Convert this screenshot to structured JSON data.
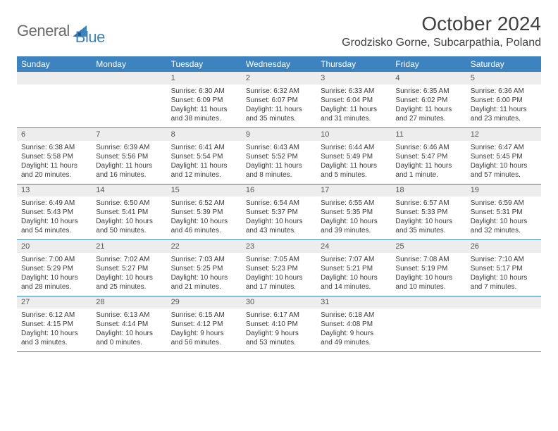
{
  "logo": {
    "general": "General",
    "blue": "Blue"
  },
  "title": "October 2024",
  "location": "Grodzisko Gorne, Subcarpathia, Poland",
  "colors": {
    "brand_blue": "#3d83bf",
    "header_gray": "#ededed",
    "text": "#3a3a3a",
    "logo_gray": "#6a6a6a"
  },
  "weekdays": [
    "Sunday",
    "Monday",
    "Tuesday",
    "Wednesday",
    "Thursday",
    "Friday",
    "Saturday"
  ],
  "weeks": [
    [
      null,
      null,
      {
        "n": "1",
        "sr": "Sunrise: 6:30 AM",
        "ss": "Sunset: 6:09 PM",
        "d1": "Daylight: 11 hours",
        "d2": "and 38 minutes."
      },
      {
        "n": "2",
        "sr": "Sunrise: 6:32 AM",
        "ss": "Sunset: 6:07 PM",
        "d1": "Daylight: 11 hours",
        "d2": "and 35 minutes."
      },
      {
        "n": "3",
        "sr": "Sunrise: 6:33 AM",
        "ss": "Sunset: 6:04 PM",
        "d1": "Daylight: 11 hours",
        "d2": "and 31 minutes."
      },
      {
        "n": "4",
        "sr": "Sunrise: 6:35 AM",
        "ss": "Sunset: 6:02 PM",
        "d1": "Daylight: 11 hours",
        "d2": "and 27 minutes."
      },
      {
        "n": "5",
        "sr": "Sunrise: 6:36 AM",
        "ss": "Sunset: 6:00 PM",
        "d1": "Daylight: 11 hours",
        "d2": "and 23 minutes."
      }
    ],
    [
      {
        "n": "6",
        "sr": "Sunrise: 6:38 AM",
        "ss": "Sunset: 5:58 PM",
        "d1": "Daylight: 11 hours",
        "d2": "and 20 minutes."
      },
      {
        "n": "7",
        "sr": "Sunrise: 6:39 AM",
        "ss": "Sunset: 5:56 PM",
        "d1": "Daylight: 11 hours",
        "d2": "and 16 minutes."
      },
      {
        "n": "8",
        "sr": "Sunrise: 6:41 AM",
        "ss": "Sunset: 5:54 PM",
        "d1": "Daylight: 11 hours",
        "d2": "and 12 minutes."
      },
      {
        "n": "9",
        "sr": "Sunrise: 6:43 AM",
        "ss": "Sunset: 5:52 PM",
        "d1": "Daylight: 11 hours",
        "d2": "and 8 minutes."
      },
      {
        "n": "10",
        "sr": "Sunrise: 6:44 AM",
        "ss": "Sunset: 5:49 PM",
        "d1": "Daylight: 11 hours",
        "d2": "and 5 minutes."
      },
      {
        "n": "11",
        "sr": "Sunrise: 6:46 AM",
        "ss": "Sunset: 5:47 PM",
        "d1": "Daylight: 11 hours",
        "d2": "and 1 minute."
      },
      {
        "n": "12",
        "sr": "Sunrise: 6:47 AM",
        "ss": "Sunset: 5:45 PM",
        "d1": "Daylight: 10 hours",
        "d2": "and 57 minutes."
      }
    ],
    [
      {
        "n": "13",
        "sr": "Sunrise: 6:49 AM",
        "ss": "Sunset: 5:43 PM",
        "d1": "Daylight: 10 hours",
        "d2": "and 54 minutes."
      },
      {
        "n": "14",
        "sr": "Sunrise: 6:50 AM",
        "ss": "Sunset: 5:41 PM",
        "d1": "Daylight: 10 hours",
        "d2": "and 50 minutes."
      },
      {
        "n": "15",
        "sr": "Sunrise: 6:52 AM",
        "ss": "Sunset: 5:39 PM",
        "d1": "Daylight: 10 hours",
        "d2": "and 46 minutes."
      },
      {
        "n": "16",
        "sr": "Sunrise: 6:54 AM",
        "ss": "Sunset: 5:37 PM",
        "d1": "Daylight: 10 hours",
        "d2": "and 43 minutes."
      },
      {
        "n": "17",
        "sr": "Sunrise: 6:55 AM",
        "ss": "Sunset: 5:35 PM",
        "d1": "Daylight: 10 hours",
        "d2": "and 39 minutes."
      },
      {
        "n": "18",
        "sr": "Sunrise: 6:57 AM",
        "ss": "Sunset: 5:33 PM",
        "d1": "Daylight: 10 hours",
        "d2": "and 35 minutes."
      },
      {
        "n": "19",
        "sr": "Sunrise: 6:59 AM",
        "ss": "Sunset: 5:31 PM",
        "d1": "Daylight: 10 hours",
        "d2": "and 32 minutes."
      }
    ],
    [
      {
        "n": "20",
        "sr": "Sunrise: 7:00 AM",
        "ss": "Sunset: 5:29 PM",
        "d1": "Daylight: 10 hours",
        "d2": "and 28 minutes."
      },
      {
        "n": "21",
        "sr": "Sunrise: 7:02 AM",
        "ss": "Sunset: 5:27 PM",
        "d1": "Daylight: 10 hours",
        "d2": "and 25 minutes."
      },
      {
        "n": "22",
        "sr": "Sunrise: 7:03 AM",
        "ss": "Sunset: 5:25 PM",
        "d1": "Daylight: 10 hours",
        "d2": "and 21 minutes."
      },
      {
        "n": "23",
        "sr": "Sunrise: 7:05 AM",
        "ss": "Sunset: 5:23 PM",
        "d1": "Daylight: 10 hours",
        "d2": "and 17 minutes."
      },
      {
        "n": "24",
        "sr": "Sunrise: 7:07 AM",
        "ss": "Sunset: 5:21 PM",
        "d1": "Daylight: 10 hours",
        "d2": "and 14 minutes."
      },
      {
        "n": "25",
        "sr": "Sunrise: 7:08 AM",
        "ss": "Sunset: 5:19 PM",
        "d1": "Daylight: 10 hours",
        "d2": "and 10 minutes."
      },
      {
        "n": "26",
        "sr": "Sunrise: 7:10 AM",
        "ss": "Sunset: 5:17 PM",
        "d1": "Daylight: 10 hours",
        "d2": "and 7 minutes."
      }
    ],
    [
      {
        "n": "27",
        "sr": "Sunrise: 6:12 AM",
        "ss": "Sunset: 4:15 PM",
        "d1": "Daylight: 10 hours",
        "d2": "and 3 minutes."
      },
      {
        "n": "28",
        "sr": "Sunrise: 6:13 AM",
        "ss": "Sunset: 4:14 PM",
        "d1": "Daylight: 10 hours",
        "d2": "and 0 minutes."
      },
      {
        "n": "29",
        "sr": "Sunrise: 6:15 AM",
        "ss": "Sunset: 4:12 PM",
        "d1": "Daylight: 9 hours",
        "d2": "and 56 minutes."
      },
      {
        "n": "30",
        "sr": "Sunrise: 6:17 AM",
        "ss": "Sunset: 4:10 PM",
        "d1": "Daylight: 9 hours",
        "d2": "and 53 minutes."
      },
      {
        "n": "31",
        "sr": "Sunrise: 6:18 AM",
        "ss": "Sunset: 4:08 PM",
        "d1": "Daylight: 9 hours",
        "d2": "and 49 minutes."
      },
      null,
      null
    ]
  ]
}
